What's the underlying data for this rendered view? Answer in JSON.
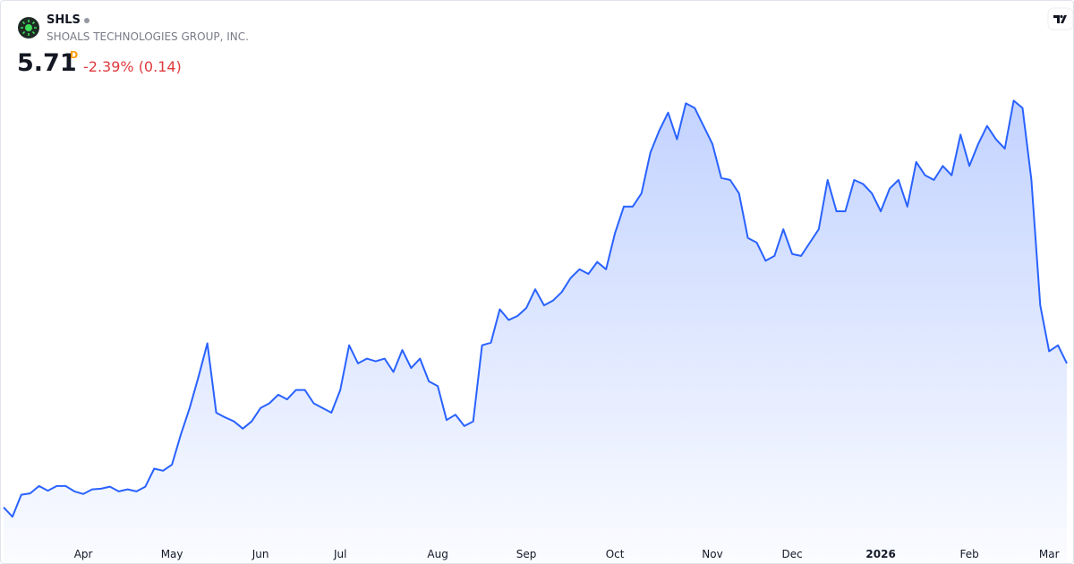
{
  "header": {
    "symbol": "SHLS",
    "company": "SHOALS TECHNOLOGIES GROUP, INC.",
    "price": "5.71",
    "resolution": "D",
    "change": "-2.39% (0.14)"
  },
  "chart_data": {
    "type": "area",
    "color": "#2962ff",
    "categories": [
      null,
      null,
      null,
      null,
      null,
      null,
      null,
      null,
      null,
      "Apr",
      null,
      null,
      null,
      null,
      null,
      null,
      null,
      null,
      null,
      "May",
      null,
      null,
      null,
      null,
      null,
      null,
      null,
      null,
      null,
      "Jun",
      null,
      null,
      null,
      null,
      null,
      null,
      null,
      null,
      "Jul",
      null,
      null,
      null,
      null,
      null,
      null,
      null,
      null,
      null,
      null,
      "Aug",
      null,
      null,
      null,
      null,
      null,
      null,
      null,
      null,
      null,
      "Sep",
      null,
      null,
      null,
      null,
      null,
      null,
      null,
      null,
      null,
      "Oct",
      null,
      null,
      null,
      null,
      null,
      null,
      null,
      null,
      null,
      null,
      "Nov",
      null,
      null,
      null,
      null,
      null,
      null,
      null,
      null,
      "Dec",
      null,
      null,
      null,
      null,
      null,
      null,
      null,
      null,
      null,
      "2026",
      null,
      null,
      null,
      null,
      null,
      null,
      null,
      null,
      null,
      "Feb",
      null,
      null,
      null,
      null,
      null,
      null,
      null,
      null,
      "Mar",
      null,
      null
    ],
    "values": [
      3.55,
      3.41,
      3.74,
      3.76,
      3.87,
      3.8,
      3.87,
      3.87,
      3.79,
      3.75,
      3.82,
      3.83,
      3.86,
      3.79,
      3.82,
      3.79,
      3.86,
      4.13,
      4.1,
      4.19,
      4.64,
      5.04,
      5.51,
      6.01,
      4.97,
      4.9,
      4.84,
      4.73,
      4.84,
      5.04,
      5.11,
      5.24,
      5.17,
      5.31,
      5.31,
      5.11,
      5.04,
      4.97,
      5.31,
      5.98,
      5.71,
      5.78,
      5.74,
      5.78,
      5.58,
      5.91,
      5.64,
      5.78,
      5.44,
      5.37,
      4.86,
      4.94,
      4.77,
      4.84,
      5.98,
      6.02,
      6.52,
      6.36,
      6.42,
      6.54,
      6.82,
      6.58,
      6.65,
      6.78,
      6.99,
      7.12,
      7.05,
      7.23,
      7.12,
      7.66,
      8.06,
      8.06,
      8.26,
      8.87,
      9.2,
      9.47,
      9.07,
      9.61,
      9.54,
      9.27,
      9.0,
      8.49,
      8.46,
      8.26,
      7.59,
      7.52,
      7.25,
      7.32,
      7.72,
      7.35,
      7.32,
      7.52,
      7.72,
      8.46,
      7.99,
      7.99,
      8.46,
      8.4,
      8.26,
      7.99,
      8.33,
      8.46,
      8.06,
      8.73,
      8.53,
      8.46,
      8.67,
      8.53,
      9.14,
      8.67,
      9.0,
      9.27,
      9.07,
      8.93,
      9.65,
      9.54,
      8.46,
      6.58,
      5.89,
      5.98,
      5.71
    ],
    "ylim": [
      3.09,
      10.34
    ],
    "grid": false
  }
}
